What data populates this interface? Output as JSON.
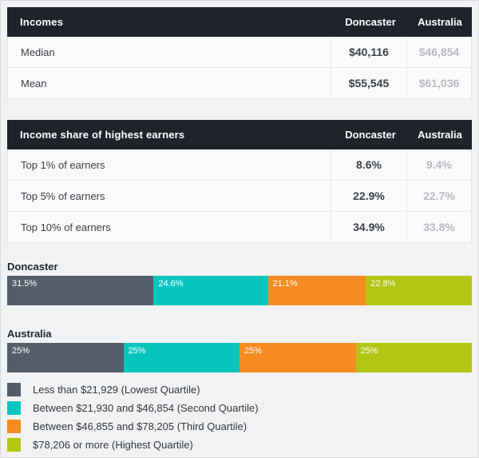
{
  "colors": {
    "table_header_bg": "#1e242a",
    "table_header_text": "#ffffff",
    "doncaster_value_text": "#3c4247",
    "australia_value_text": "#b7bbbf"
  },
  "legend": {
    "items": [
      {
        "label": "Less than $21,929 (Lowest Quartile)",
        "color": "#535e6a"
      },
      {
        "label": "Between $21,930 and $46,854 (Second Quartile)",
        "color": "#06c5bd"
      },
      {
        "label": "Between $46,855 and $78,205 (Third Quartile)",
        "color": "#f68b1f"
      },
      {
        "label": "$78,206 or more (Highest Quartile)",
        "color": "#b1c713"
      }
    ]
  },
  "chart_data": [
    {
      "type": "table",
      "title": "Incomes",
      "columns": [
        "",
        "Doncaster",
        "Australia"
      ],
      "rows": [
        [
          "Median",
          "$40,116",
          "$46,854"
        ],
        [
          "Mean",
          "$55,545",
          "$61,036"
        ]
      ]
    },
    {
      "type": "table",
      "title": "Income share of highest earners",
      "columns": [
        "",
        "Doncaster",
        "Australia"
      ],
      "rows": [
        [
          "Top 1% of earners",
          "8.6%",
          "9.4%"
        ],
        [
          "Top 5% of earners",
          "22.9%",
          "22.7%"
        ],
        [
          "Top 10% of earners",
          "34.9%",
          "33.8%"
        ]
      ]
    },
    {
      "type": "bar",
      "subtype": "stacked-horizontal",
      "title": "Doncaster",
      "categories": [
        "Lowest Quartile",
        "Second Quartile",
        "Third Quartile",
        "Highest Quartile"
      ],
      "values": [
        31.5,
        24.6,
        21.1,
        22.8
      ],
      "labels": [
        "31.5%",
        "24.6%",
        "21.1%",
        "22.8%"
      ],
      "xlim": [
        0,
        100
      ],
      "legend_position": "bottom"
    },
    {
      "type": "bar",
      "subtype": "stacked-horizontal",
      "title": "Australia",
      "categories": [
        "Lowest Quartile",
        "Second Quartile",
        "Third Quartile",
        "Highest Quartile"
      ],
      "values": [
        25,
        25,
        25,
        25
      ],
      "labels": [
        "25%",
        "25%",
        "25%",
        "25%"
      ],
      "xlim": [
        0,
        100
      ],
      "legend_position": "bottom"
    }
  ]
}
